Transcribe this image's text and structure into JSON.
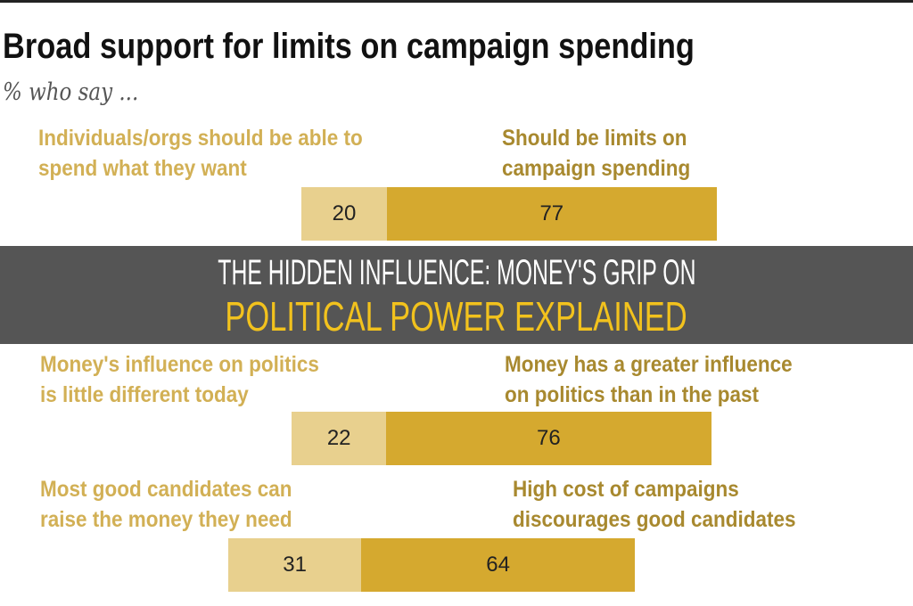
{
  "chart_data": {
    "type": "bar",
    "orientation": "horizontal-stacked",
    "title": "Broad support for limits on campaign spending",
    "subtitle": "% who say ...",
    "rows": [
      {
        "left_label": "Individuals/orgs should be able to spend what they want",
        "left_lines": [
          "Individuals/orgs should be able to",
          "spend what they want"
        ],
        "left_value": 20,
        "right_label": "Should be limits on campaign spending",
        "right_lines": [
          "Should be limits on",
          "campaign spending"
        ],
        "right_value": 77
      },
      {
        "left_label": "Money's influence on politics is little different today",
        "left_lines": [
          "Money's influence on politics",
          "is little different today"
        ],
        "left_value": 22,
        "right_label": "Money has a greater influence on politics than in the past",
        "right_lines": [
          "Money has a greater influence",
          "on politics than in the past"
        ],
        "right_value": 76
      },
      {
        "left_label": "Most good candidates can raise the money they need",
        "left_lines": [
          "Most good candidates can",
          "raise the money they need"
        ],
        "left_value": 31,
        "right_label": "High cost of campaigns discourages good candidates",
        "right_lines": [
          "High cost of campaigns",
          "discourages good candidates"
        ],
        "right_value": 64
      }
    ],
    "colors": {
      "left": "#e8d08e",
      "right": "#d5a92f",
      "left_label": "#d2b055",
      "right_label": "#a8892f"
    },
    "grid": false
  },
  "banner": {
    "line1": "THE HIDDEN INFLUENCE: MONEY'S GRIP ON",
    "line2": "POLITICAL POWER EXPLAINED",
    "line2_color": "#f2c21d"
  }
}
